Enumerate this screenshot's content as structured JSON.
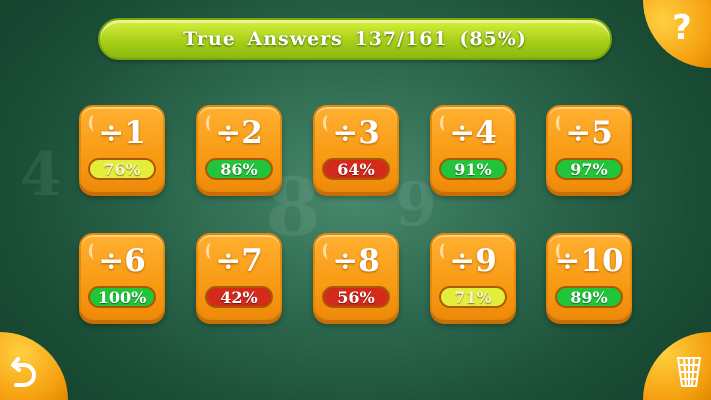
{
  "header": {
    "title": "True Answers 137/161 (85%)"
  },
  "buttons": {
    "help": "?",
    "back_icon": "undo-arrow-icon",
    "trash_icon": "trash-icon"
  },
  "colors": {
    "good": "#22c43a",
    "medium": "#e4ee3a",
    "bad": "#d42a1c",
    "tile": "#f89a14"
  },
  "tiles": [
    {
      "label": "÷1",
      "score": "76%",
      "level": "medium"
    },
    {
      "label": "÷2",
      "score": "86%",
      "level": "good"
    },
    {
      "label": "÷3",
      "score": "64%",
      "level": "bad"
    },
    {
      "label": "÷4",
      "score": "91%",
      "level": "good"
    },
    {
      "label": "÷5",
      "score": "97%",
      "level": "good"
    },
    {
      "label": "÷6",
      "score": "100%",
      "level": "good"
    },
    {
      "label": "÷7",
      "score": "42%",
      "level": "bad"
    },
    {
      "label": "÷8",
      "score": "56%",
      "level": "bad"
    },
    {
      "label": "÷9",
      "score": "71%",
      "level": "medium"
    },
    {
      "label": "÷10",
      "score": "89%",
      "level": "good"
    }
  ]
}
